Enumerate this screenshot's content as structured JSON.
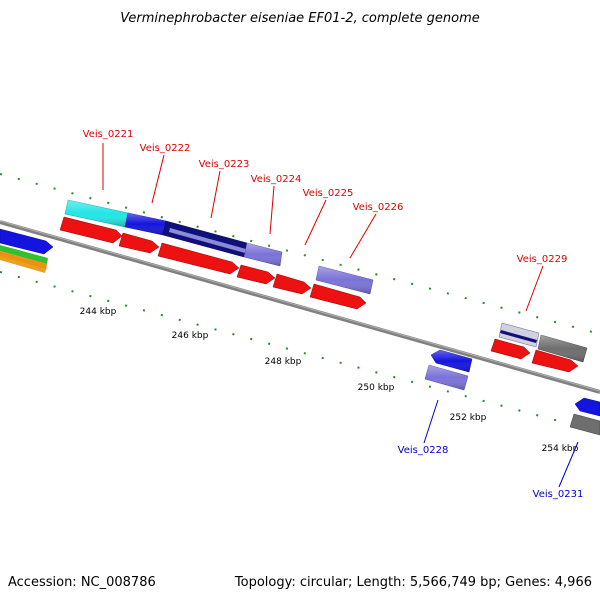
{
  "title": "Verminephrobacter eiseniae EF01-2, complete genome",
  "accession": "Accession: NC_008786",
  "topology": "Topology: circular; Length: 5,566,749 bp; Genes: 4,966",
  "colors": {
    "label_forward": "#e00000",
    "label_reverse": "#0000cc",
    "tick": "#2a8a2a",
    "backbone": "#808080"
  },
  "scale_labels": [
    "244 kbp",
    "246 kbp",
    "248 kbp",
    "250 kbp",
    "252 kbp",
    "254 kbp"
  ],
  "gene_labels": [
    {
      "id": "Veis_0221",
      "strand": "forward"
    },
    {
      "id": "Veis_0222",
      "strand": "forward"
    },
    {
      "id": "Veis_0223",
      "strand": "forward"
    },
    {
      "id": "Veis_0224",
      "strand": "forward"
    },
    {
      "id": "Veis_0225",
      "strand": "forward"
    },
    {
      "id": "Veis_0226",
      "strand": "forward"
    },
    {
      "id": "Veis_0229",
      "strand": "forward"
    },
    {
      "id": "Veis_0228",
      "strand": "reverse"
    },
    {
      "id": "Veis_0231",
      "strand": "reverse"
    }
  ]
}
